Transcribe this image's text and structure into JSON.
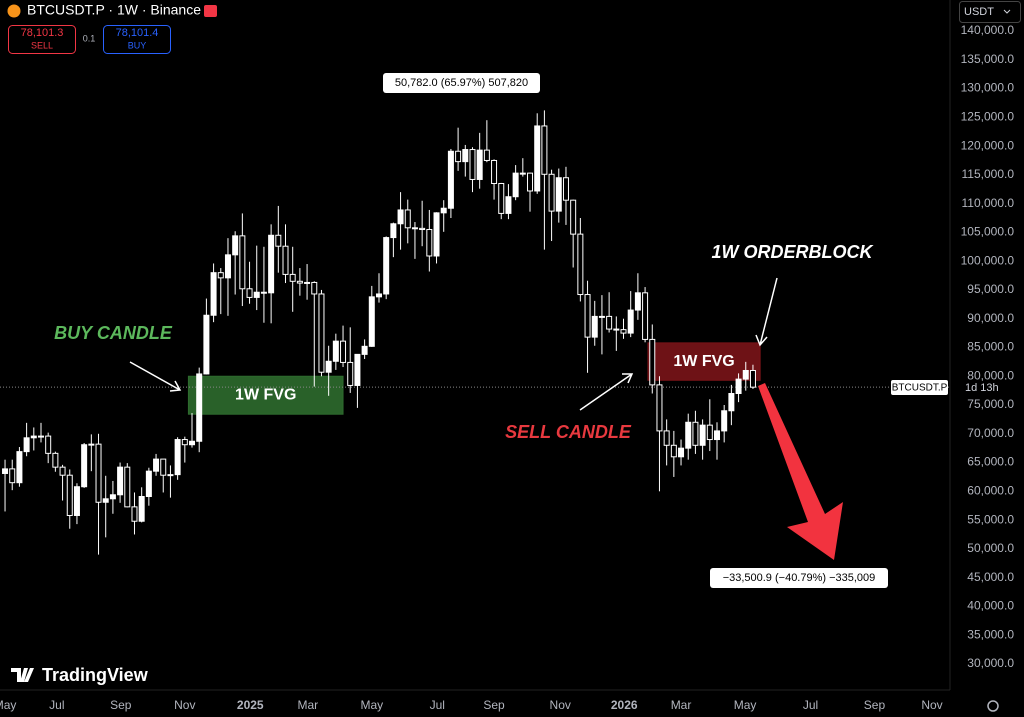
{
  "chart_data": {
    "type": "candlestick",
    "title": "BTCUSDT.P · 1W · Binance",
    "header": {
      "sell": "SELL",
      "spread": "0.1",
      "buy_price": "78,101.4",
      "buy": "BUY",
      "currency": "USDT",
      "tag_symbol": "BTCUSDT.P",
      "tag_countdown": "1d 13h",
      "brand": "TradingView"
    },
    "last_price": {
      "value": 78101.3,
      "label": "78,101.3"
    },
    "up_color": "#ffffff",
    "down_color": "#000000",
    "wick_color": "#ffffff",
    "xlim": [
      -0.7,
      131.4
    ],
    "xticks": [
      {
        "value": 0,
        "label": "May"
      },
      {
        "value": 7.2,
        "label": "Jul"
      },
      {
        "value": 16.1,
        "label": "Sep"
      },
      {
        "value": 25,
        "label": "Nov"
      },
      {
        "value": 34.1,
        "label": "2025"
      },
      {
        "value": 42.1,
        "label": "Mar"
      },
      {
        "value": 51,
        "label": "May"
      },
      {
        "value": 60.1,
        "label": "Jul"
      },
      {
        "value": 68,
        "label": "Sep"
      },
      {
        "value": 77.2,
        "label": "Nov"
      },
      {
        "value": 86.1,
        "label": "2026"
      },
      {
        "value": 94,
        "label": "Mar"
      },
      {
        "value": 102.9,
        "label": "May"
      },
      {
        "value": 112,
        "label": "Jul"
      },
      {
        "value": 120.9,
        "label": "Sep"
      },
      {
        "value": 128.9,
        "label": "Nov"
      }
    ],
    "ylim": [
      25470,
      145390
    ],
    "yticks": [
      {
        "value": 30000,
        "label": "30,000.0"
      },
      {
        "value": 35000,
        "label": "35,000.0"
      },
      {
        "value": 40000,
        "label": "40,000.0"
      },
      {
        "value": 45000,
        "label": "45,000.0"
      },
      {
        "value": 50000,
        "label": "50,000.0"
      },
      {
        "value": 55000,
        "label": "55,000.0"
      },
      {
        "value": 60000,
        "label": "60,000.0"
      },
      {
        "value": 65000,
        "label": "65,000.0"
      },
      {
        "value": 70000,
        "label": "70,000.0"
      },
      {
        "value": 75000,
        "label": "75,000.0"
      },
      {
        "value": 80000,
        "label": "80,000.0"
      },
      {
        "value": 85000,
        "label": "85,000.0"
      },
      {
        "value": 90000,
        "label": "90,000.0"
      },
      {
        "value": 95000,
        "label": "95,000.0"
      },
      {
        "value": 100000,
        "label": "100,000.0"
      },
      {
        "value": 105000,
        "label": "105,000.0"
      },
      {
        "value": 110000,
        "label": "110,000.0"
      },
      {
        "value": 115000,
        "label": "115,000.0"
      },
      {
        "value": 120000,
        "label": "120,000.0"
      },
      {
        "value": 125000,
        "label": "125,000.0"
      },
      {
        "value": 130000,
        "label": "130,000.0"
      },
      {
        "value": 135000,
        "label": "135,000.0"
      },
      {
        "value": 140000,
        "label": "140,000.0"
      }
    ],
    "ohlc": [
      [
        63100,
        65500,
        56500,
        63900
      ],
      [
        63900,
        65500,
        60200,
        61500
      ],
      [
        61500,
        67700,
        60800,
        66900
      ],
      [
        66900,
        71900,
        66100,
        69300
      ],
      [
        69300,
        71100,
        67100,
        69600
      ],
      [
        69600,
        71900,
        68500,
        69600
      ],
      [
        69600,
        70200,
        64900,
        66600
      ],
      [
        66600,
        66900,
        63400,
        64200
      ],
      [
        64200,
        64600,
        58400,
        62800
      ],
      [
        62800,
        63800,
        53500,
        55800
      ],
      [
        55800,
        61400,
        54300,
        60800
      ],
      [
        60800,
        68400,
        60600,
        68100
      ],
      [
        68100,
        69900,
        63500,
        68200
      ],
      [
        68200,
        70000,
        49000,
        58100
      ],
      [
        58100,
        62700,
        52000,
        58700
      ],
      [
        58700,
        61800,
        56100,
        59400
      ],
      [
        59400,
        65000,
        58000,
        64200
      ],
      [
        64200,
        64900,
        57200,
        57300
      ],
      [
        57300,
        59800,
        52500,
        54800
      ],
      [
        54800,
        60700,
        54600,
        59100
      ],
      [
        59100,
        64100,
        57500,
        63500
      ],
      [
        63500,
        66500,
        62700,
        65600
      ],
      [
        65600,
        65600,
        59800,
        62800
      ],
      [
        62800,
        64500,
        58900,
        62900
      ],
      [
        62900,
        69400,
        62000,
        69000
      ],
      [
        69000,
        69500,
        65000,
        68100
      ],
      [
        68100,
        73600,
        67600,
        68700
      ],
      [
        68700,
        81500,
        66800,
        80400
      ],
      [
        80400,
        93500,
        80300,
        90600
      ],
      [
        90600,
        99600,
        89400,
        98000
      ],
      [
        98000,
        98800,
        90800,
        97100
      ],
      [
        97100,
        104000,
        90500,
        101100
      ],
      [
        101100,
        105200,
        94200,
        104400
      ],
      [
        104400,
        108300,
        92200,
        95200
      ],
      [
        95200,
        99900,
        92600,
        93700
      ],
      [
        93700,
        102700,
        91500,
        94600
      ],
      [
        94600,
        102500,
        89300,
        94500
      ],
      [
        94500,
        106400,
        89200,
        104500
      ],
      [
        104500,
        109600,
        98000,
        102600
      ],
      [
        102600,
        106400,
        96200,
        97700
      ],
      [
        97700,
        102500,
        91200,
        96500
      ],
      [
        96500,
        98800,
        94000,
        96200
      ],
      [
        96200,
        99500,
        93300,
        96300
      ],
      [
        96300,
        96500,
        78200,
        94300
      ],
      [
        94300,
        95000,
        80000,
        80700
      ],
      [
        80700,
        85300,
        76600,
        82600
      ],
      [
        82600,
        87400,
        81100,
        86100
      ],
      [
        86100,
        88800,
        81600,
        82400
      ],
      [
        82400,
        88500,
        77100,
        78400
      ],
      [
        78400,
        83500,
        74500,
        83800
      ],
      [
        83800,
        86400,
        83000,
        85200
      ],
      [
        85200,
        95700,
        85100,
        93800
      ],
      [
        93800,
        97900,
        92800,
        94300
      ],
      [
        94300,
        104300,
        93400,
        104100
      ],
      [
        104100,
        106700,
        100700,
        106500
      ],
      [
        106500,
        112000,
        102000,
        108900
      ],
      [
        108900,
        110700,
        103100,
        105800
      ],
      [
        105800,
        106800,
        100400,
        105700
      ],
      [
        105700,
        110500,
        102600,
        105500
      ],
      [
        105500,
        108900,
        98200,
        100900
      ],
      [
        100900,
        108500,
        99600,
        108400
      ],
      [
        108400,
        110600,
        105100,
        109200
      ],
      [
        109200,
        119500,
        107500,
        119100
      ],
      [
        119100,
        123200,
        115700,
        117300
      ],
      [
        117300,
        120200,
        114700,
        119400
      ],
      [
        119400,
        119800,
        112000,
        114200
      ],
      [
        114200,
        122300,
        112600,
        119300
      ],
      [
        119300,
        124500,
        117200,
        117500
      ],
      [
        117500,
        117700,
        110700,
        113500
      ],
      [
        113500,
        113600,
        107300,
        108300
      ],
      [
        108300,
        113400,
        107300,
        111200
      ],
      [
        111200,
        116700,
        110600,
        115300
      ],
      [
        115300,
        117900,
        114700,
        115300
      ],
      [
        115300,
        115400,
        108600,
        112200
      ],
      [
        112200,
        125700,
        111700,
        123500
      ],
      [
        123500,
        126200,
        102000,
        115100
      ],
      [
        115100,
        115900,
        103500,
        108700
      ],
      [
        108700,
        116100,
        106700,
        114500
      ],
      [
        114500,
        116400,
        106300,
        110600
      ],
      [
        110600,
        110700,
        98900,
        104700
      ],
      [
        104700,
        107500,
        93000,
        94200
      ],
      [
        94200,
        96600,
        80600,
        86800
      ],
      [
        86800,
        93100,
        85300,
        90400
      ],
      [
        90400,
        94100,
        83800,
        90400
      ],
      [
        90400,
        94600,
        87600,
        88200
      ],
      [
        88200,
        90400,
        84400,
        88100
      ],
      [
        88100,
        90000,
        86500,
        87500
      ],
      [
        87500,
        94800,
        86800,
        91500
      ],
      [
        91500,
        97900,
        89800,
        94500
      ],
      [
        94500,
        95500,
        85900,
        86400
      ],
      [
        86400,
        89000,
        77000,
        78500
      ],
      [
        78500,
        80000,
        60000,
        70500
      ],
      [
        70500,
        72500,
        64500,
        68000
      ],
      [
        68000,
        70500,
        62500,
        66000
      ],
      [
        66000,
        69000,
        64500,
        67500
      ],
      [
        67500,
        73500,
        65500,
        72000
      ],
      [
        72000,
        74000,
        66500,
        68000
      ],
      [
        68000,
        72500,
        65500,
        71500
      ],
      [
        71500,
        76000,
        67000,
        69000
      ],
      [
        69000,
        72000,
        65500,
        70500
      ],
      [
        70500,
        75000,
        68500,
        74000
      ],
      [
        74000,
        78500,
        71500,
        77000
      ],
      [
        77000,
        80500,
        75500,
        79500
      ],
      [
        79500,
        82500,
        77500,
        81000
      ],
      [
        81000,
        82000,
        77800,
        78101.3
      ]
    ],
    "zones": [
      {
        "label": "1W FVG",
        "color": "#2e6b2e",
        "x": [
          25.5,
          47
        ],
        "y": [
          73400,
          80000
        ]
      },
      {
        "label": "1W FVG",
        "color": "#7a1418",
        "x": [
          89.4,
          105
        ],
        "y": [
          79300,
          85800
        ]
      }
    ],
    "measures": [
      "50,782.0 (65.97%) 507,820",
      "−33,500.9 (−40.79%) −335,009"
    ],
    "annotations": {
      "buy_candle": "BUY CANDLE",
      "sell_candle": "SELL CANDLE",
      "orderblock": "1W ORDERBLOCK"
    }
  }
}
